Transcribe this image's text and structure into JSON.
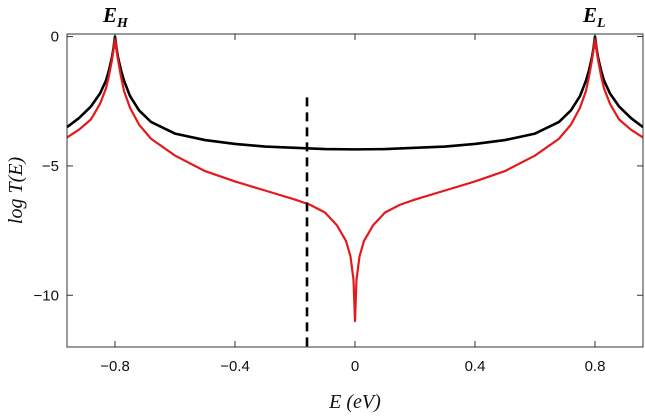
{
  "chart_data": {
    "type": "line",
    "xlabel": "E (eV)",
    "ylabel": "log T(E)",
    "xlim": [
      -0.96,
      0.96
    ],
    "ylim": [
      -12,
      0.1
    ],
    "xticks": [
      -0.8,
      -0.4,
      0,
      0.4,
      0.8
    ],
    "xtick_labels": [
      "−0.8",
      "−0.4",
      "0",
      "0.4",
      "0.8"
    ],
    "yticks": [
      0,
      -5,
      -10
    ],
    "ytick_labels": [
      "0",
      "−5",
      "−10"
    ],
    "grid": false,
    "series": [
      {
        "color": "#000000",
        "x": [
          -0.96,
          -0.92,
          -0.88,
          -0.85,
          -0.83,
          -0.82,
          -0.81,
          -0.805,
          -0.8,
          -0.795,
          -0.79,
          -0.78,
          -0.77,
          -0.75,
          -0.72,
          -0.68,
          -0.6,
          -0.5,
          -0.4,
          -0.3,
          -0.2,
          -0.1,
          0,
          0.1,
          0.2,
          0.3,
          0.4,
          0.5,
          0.6,
          0.68,
          0.72,
          0.75,
          0.77,
          0.78,
          0.79,
          0.795,
          0.8,
          0.805,
          0.81,
          0.82,
          0.83,
          0.85,
          0.88,
          0.92,
          0.96
        ],
        "y": [
          -3.5,
          -3.15,
          -2.7,
          -2.2,
          -1.7,
          -1.3,
          -0.8,
          -0.45,
          0,
          -0.45,
          -0.8,
          -1.3,
          -1.7,
          -2.3,
          -2.85,
          -3.3,
          -3.75,
          -4.0,
          -4.15,
          -4.25,
          -4.3,
          -4.35,
          -4.36,
          -4.35,
          -4.3,
          -4.25,
          -4.15,
          -4.0,
          -3.75,
          -3.3,
          -2.85,
          -2.3,
          -1.7,
          -1.3,
          -0.8,
          -0.45,
          0,
          -0.45,
          -0.8,
          -1.3,
          -1.7,
          -2.2,
          -2.7,
          -3.15,
          -3.5
        ]
      },
      {
        "color": "#e31a1c",
        "x": [
          -0.96,
          -0.92,
          -0.88,
          -0.85,
          -0.83,
          -0.82,
          -0.81,
          -0.805,
          -0.8,
          -0.795,
          -0.79,
          -0.78,
          -0.77,
          -0.75,
          -0.72,
          -0.68,
          -0.6,
          -0.5,
          -0.4,
          -0.3,
          -0.2,
          -0.15,
          -0.1,
          -0.06,
          -0.03,
          -0.015,
          -0.005,
          0,
          0.005,
          0.015,
          0.03,
          0.06,
          0.1,
          0.15,
          0.2,
          0.3,
          0.4,
          0.5,
          0.6,
          0.68,
          0.72,
          0.75,
          0.77,
          0.78,
          0.79,
          0.795,
          0.8,
          0.805,
          0.81,
          0.82,
          0.83,
          0.85,
          0.88,
          0.92,
          0.96
        ],
        "y": [
          -3.9,
          -3.6,
          -3.2,
          -2.6,
          -2.0,
          -1.5,
          -0.9,
          -0.5,
          -0.1,
          -0.5,
          -0.9,
          -1.55,
          -2.1,
          -2.75,
          -3.4,
          -3.95,
          -4.6,
          -5.2,
          -5.6,
          -5.95,
          -6.3,
          -6.5,
          -6.8,
          -7.3,
          -7.9,
          -8.5,
          -9.4,
          -11.0,
          -9.4,
          -8.5,
          -7.9,
          -7.3,
          -6.8,
          -6.5,
          -6.3,
          -5.95,
          -5.6,
          -5.2,
          -4.6,
          -3.95,
          -3.4,
          -2.75,
          -2.1,
          -1.55,
          -0.9,
          -0.5,
          -0.1,
          -0.5,
          -0.9,
          -1.5,
          -2.0,
          -2.6,
          -3.2,
          -3.6,
          -3.9
        ]
      }
    ],
    "vline": {
      "x": -0.16,
      "y_top": -2.35,
      "y_bottom": -12,
      "style": "dashed",
      "color": "#000000"
    },
    "annotations": [
      {
        "main": "E",
        "sub": "H",
        "x": -0.8
      },
      {
        "main": "E",
        "sub": "L",
        "x": 0.8
      }
    ]
  }
}
